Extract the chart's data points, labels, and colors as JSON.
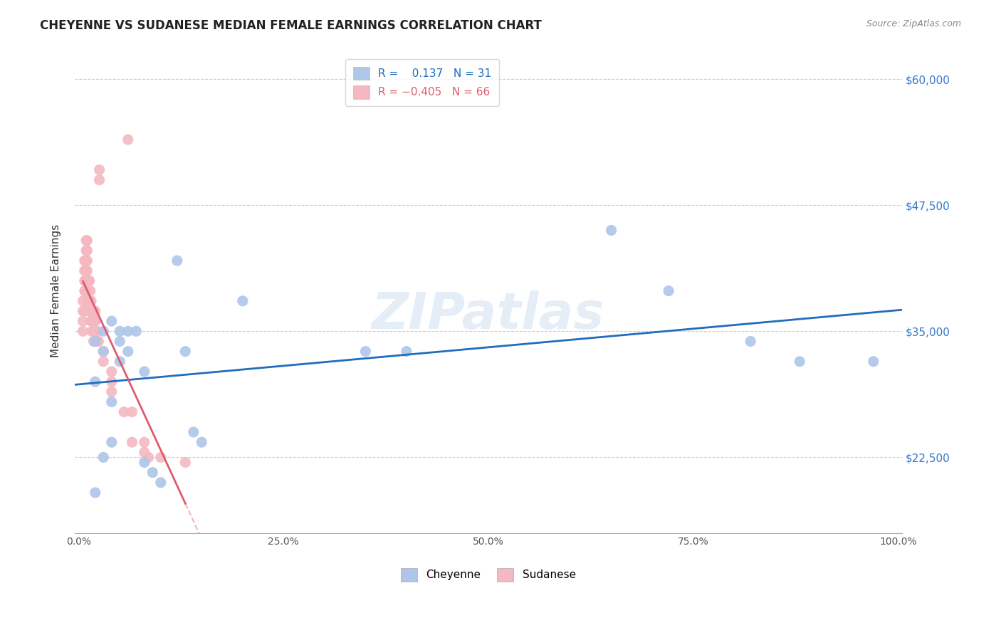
{
  "title": "CHEYENNE VS SUDANESE MEDIAN FEMALE EARNINGS CORRELATION CHART",
  "source": "Source: ZipAtlas.com",
  "ylabel": "Median Female Earnings",
  "ytick_labels": [
    "$22,500",
    "$35,000",
    "$47,500",
    "$60,000"
  ],
  "ytick_values": [
    22500,
    35000,
    47500,
    60000
  ],
  "ymin": 15000,
  "ymax": 63000,
  "xmin": -0.005,
  "xmax": 1.005,
  "cheyenne_R": 0.137,
  "cheyenne_N": 31,
  "sudanese_R": -0.405,
  "sudanese_N": 66,
  "cheyenne_color": "#aec6e8",
  "sudanese_color": "#f4b8c1",
  "cheyenne_line_color": "#1f6dbf",
  "sudanese_line_color": "#e05a6d",
  "watermark": "ZIPatlas",
  "legend_label_cheyenne": "Cheyenne",
  "legend_label_sudanese": "Sudanese",
  "cheyenne_x": [
    0.02,
    0.02,
    0.02,
    0.03,
    0.03,
    0.03,
    0.04,
    0.04,
    0.04,
    0.05,
    0.05,
    0.05,
    0.06,
    0.06,
    0.07,
    0.08,
    0.08,
    0.09,
    0.1,
    0.12,
    0.13,
    0.14,
    0.15,
    0.2,
    0.35,
    0.4,
    0.65,
    0.72,
    0.82,
    0.88,
    0.97
  ],
  "cheyenne_y": [
    34000,
    30000,
    19000,
    35000,
    33000,
    22500,
    36000,
    28000,
    24000,
    35000,
    34000,
    32000,
    35000,
    33000,
    35000,
    31000,
    22000,
    21000,
    20000,
    42000,
    33000,
    25000,
    24000,
    38000,
    33000,
    33000,
    45000,
    39000,
    34000,
    32000,
    32000
  ],
  "sudanese_x": [
    0.005,
    0.005,
    0.005,
    0.005,
    0.007,
    0.007,
    0.007,
    0.007,
    0.007,
    0.008,
    0.008,
    0.008,
    0.008,
    0.009,
    0.009,
    0.009,
    0.009,
    0.009,
    0.01,
    0.01,
    0.01,
    0.01,
    0.01,
    0.01,
    0.01,
    0.012,
    0.012,
    0.012,
    0.013,
    0.013,
    0.014,
    0.014,
    0.015,
    0.015,
    0.015,
    0.016,
    0.016,
    0.016,
    0.017,
    0.018,
    0.018,
    0.018,
    0.019,
    0.019,
    0.02,
    0.02,
    0.02,
    0.022,
    0.022,
    0.024,
    0.025,
    0.025,
    0.03,
    0.03,
    0.04,
    0.04,
    0.04,
    0.055,
    0.06,
    0.065,
    0.065,
    0.08,
    0.08,
    0.085,
    0.1,
    0.13
  ],
  "sudanese_y": [
    38000,
    37000,
    36000,
    35000,
    42000,
    41000,
    40000,
    39000,
    37000,
    42000,
    41000,
    40000,
    39000,
    44000,
    43000,
    42000,
    41000,
    40000,
    44000,
    43000,
    42000,
    41000,
    40000,
    39000,
    38000,
    40000,
    38000,
    37000,
    40000,
    38000,
    39000,
    37000,
    38000,
    37000,
    36000,
    37000,
    36000,
    35000,
    37000,
    36000,
    35000,
    34000,
    36000,
    35000,
    37000,
    36000,
    35000,
    35000,
    34000,
    34000,
    51000,
    50000,
    33000,
    32000,
    31000,
    30000,
    29000,
    27000,
    54000,
    27000,
    24000,
    24000,
    23000,
    22500,
    22500,
    22000
  ]
}
